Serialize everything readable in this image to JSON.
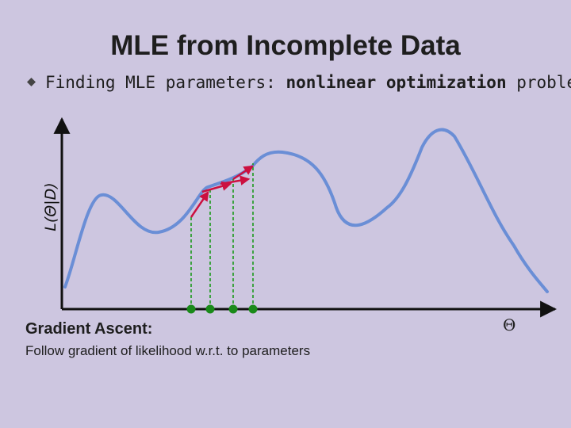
{
  "slide": {
    "title": "MLE from Incomplete Data",
    "bullet": {
      "prefix": "Finding MLE parameters: ",
      "emphasis": "nonlinear optimization",
      "suffix": " problem"
    },
    "plot": {
      "y_axis_label": "L(Θ|D)",
      "x_axis_label": "Θ"
    },
    "gradient_ascent": {
      "heading": "Gradient Ascent:",
      "description": "Follow gradient of likelihood w.r.t. to parameters"
    }
  },
  "colors": {
    "background": "#cdc6e0",
    "curve": "#6a8ed6",
    "gradient_arrow": "#cc1040",
    "guide_line": "#1a9a1a",
    "marker": "#1a8a1a",
    "axis": "#111111"
  },
  "icons": {
    "bullet": "diamond-bullet-icon"
  }
}
